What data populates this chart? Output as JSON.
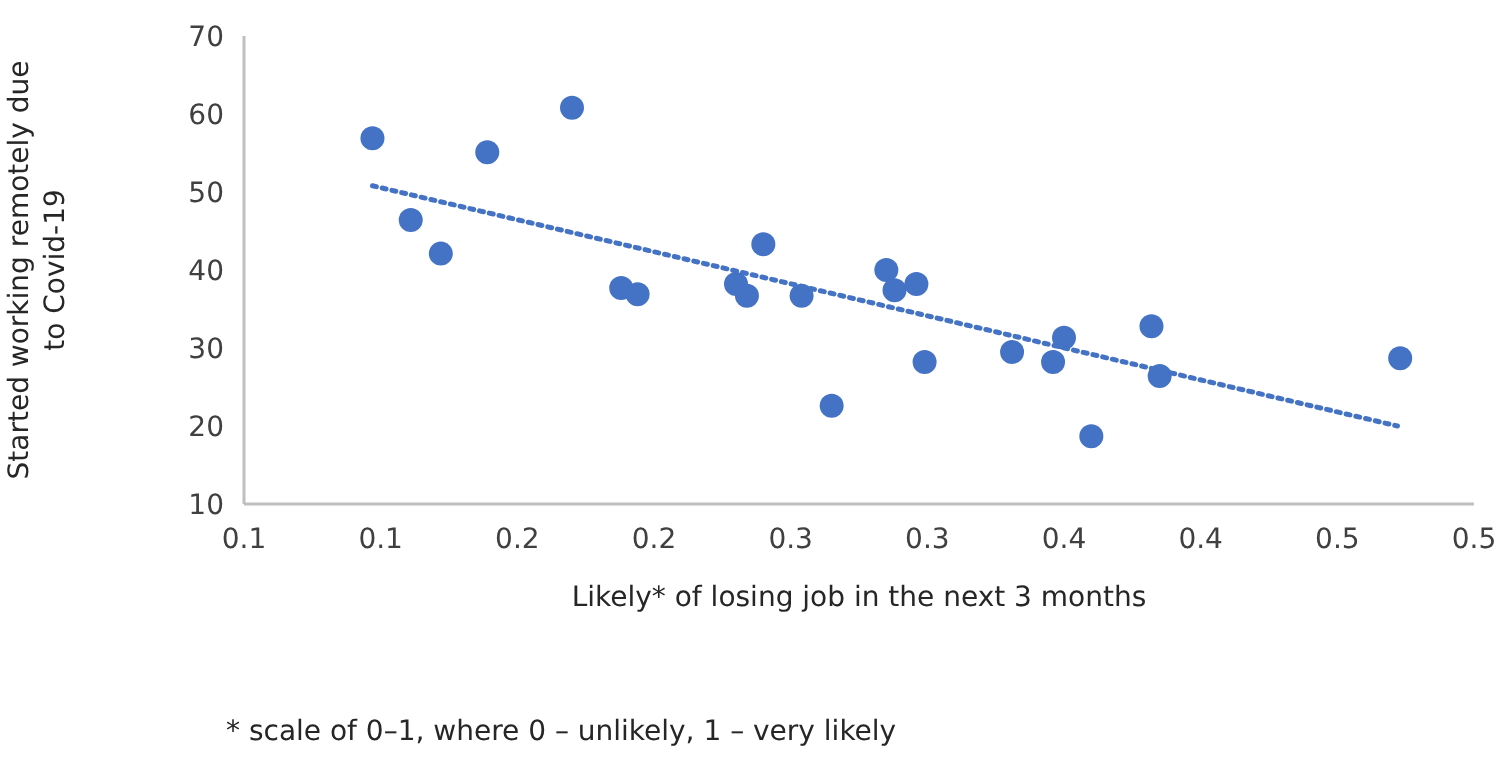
{
  "chart_data": {
    "type": "scatter",
    "xlabel": "Likely* of losing job in the next 3 months",
    "ylabel": "Started working remotely due to Covid-19",
    "annotations": [
      "* scale of 0–1, where 0 – unlikely, 1 – very likely"
    ],
    "xlim": [
      0.1,
      0.55
    ],
    "xticks": [
      0.1,
      {
        "value": 0.15,
        "label": "0.1"
      },
      0.2,
      {
        "value": 0.25,
        "label": "0.2"
      },
      0.3,
      {
        "value": 0.35,
        "label": "0.3"
      },
      0.4,
      {
        "value": 0.45,
        "label": "0.4"
      },
      0.5,
      {
        "value": 0.55,
        "label": "0.5"
      }
    ],
    "ylim": [
      10,
      70
    ],
    "yticks": [
      10,
      20,
      30,
      40,
      50,
      60,
      70
    ],
    "grid": false,
    "marker": "circle",
    "series": [
      {
        "color": "#4472c4",
        "x": [
          0.147,
          0.161,
          0.172,
          0.189,
          0.22,
          0.238,
          0.244,
          0.28,
          0.284,
          0.29,
          0.304,
          0.315,
          0.335,
          0.338,
          0.346,
          0.349,
          0.381,
          0.396,
          0.4,
          0.41,
          0.432,
          0.435,
          0.523
        ],
        "values": [
          56.9,
          46.4,
          42.1,
          55.1,
          60.8,
          37.7,
          36.9,
          38.2,
          36.7,
          43.3,
          36.7,
          22.6,
          40,
          37.4,
          38.2,
          28.2,
          29.5,
          28.2,
          31.3,
          18.7,
          32.8,
          26.4,
          28.7
        ]
      },
      {
        "type": "line",
        "color": "#4472c4",
        "line_style": "dotted",
        "marker": "none",
        "x": [
          0.147,
          0.522
        ],
        "values": [
          50.8,
          20
        ]
      }
    ]
  }
}
